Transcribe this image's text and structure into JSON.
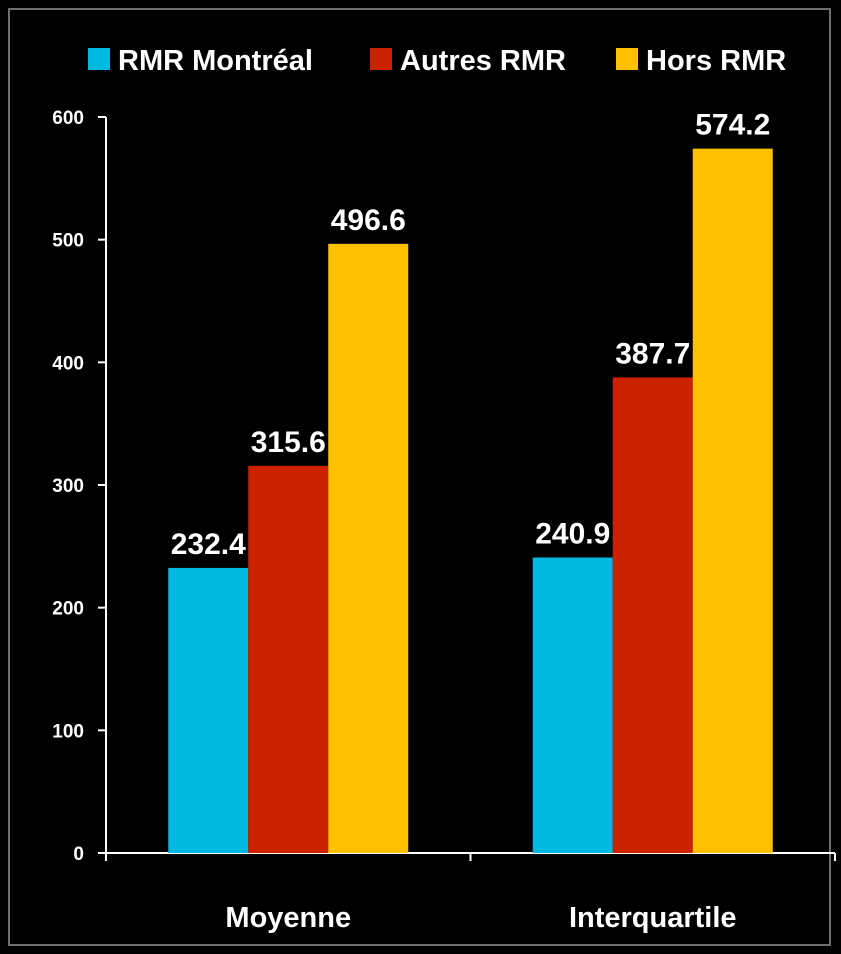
{
  "chart_data": {
    "type": "bar",
    "categories": [
      "Moyenne",
      "Interquartile"
    ],
    "series": [
      {
        "name": "RMR Montréal",
        "color": "#00b8e0",
        "values": [
          232.4,
          240.9
        ]
      },
      {
        "name": "Autres RMR",
        "color": "#cc2200",
        "values": [
          315.6,
          387.7
        ]
      },
      {
        "name": "Hors RMR",
        "color": "#ffc000",
        "values": [
          496.6,
          574.2
        ]
      }
    ],
    "ylim": [
      0,
      600
    ],
    "yticks": [
      0,
      100,
      200,
      300,
      400,
      500,
      600
    ],
    "data_labels": [
      [
        "232.4",
        "240.9"
      ],
      [
        "315.6",
        "387.7"
      ],
      [
        "496.6",
        "574.2"
      ]
    ],
    "legend_position": "top",
    "grid": false,
    "background": "#000000"
  }
}
